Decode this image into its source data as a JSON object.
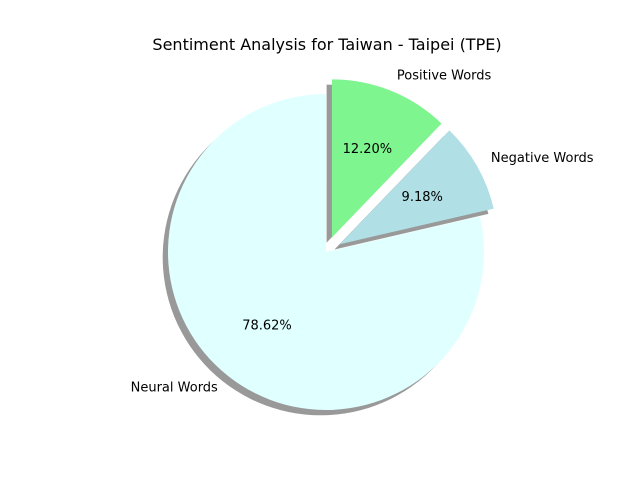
{
  "chart_data": {
    "type": "pie",
    "title": "Sentiment Analysis for Taiwan - Taipei (TPE)",
    "labels": [
      "Positive Words",
      "Negative Words",
      "Neural Words"
    ],
    "values": [
      12.2,
      9.18,
      78.62
    ],
    "percent_labels": [
      "12.20%",
      "9.18%",
      "78.62%"
    ],
    "colors": [
      "#7ef58f",
      "#b0dfe5",
      "#e0ffff"
    ],
    "exploded": [
      true,
      true,
      false
    ],
    "shadow": true,
    "start_angle_deg": 90,
    "direction": "clockwise",
    "legend": "none"
  }
}
